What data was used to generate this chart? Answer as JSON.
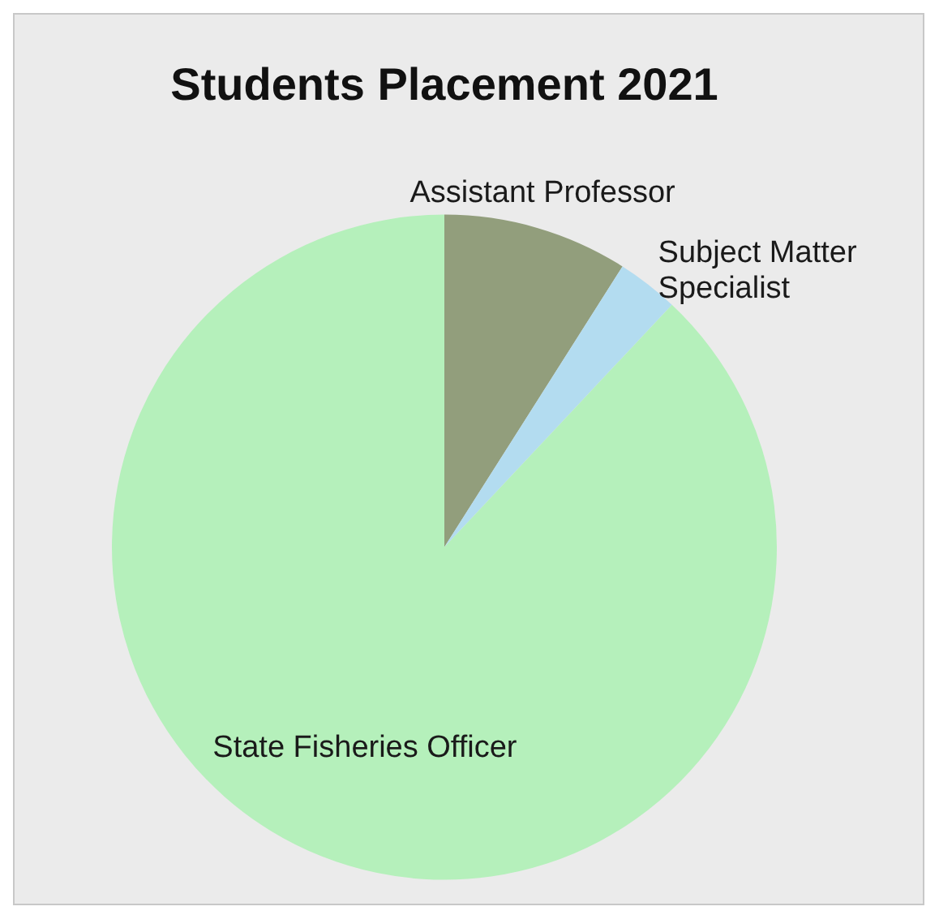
{
  "chart_data": {
    "type": "pie",
    "title": "Students Placement 2021",
    "categories": [
      "Assistant Professor",
      "Subject Matter Specialist",
      "State Fisheries Officer"
    ],
    "values": [
      9,
      3,
      88
    ],
    "colors": [
      "#929e7c",
      "#b3dcf0",
      "#b5f0bb"
    ],
    "legend": false
  }
}
